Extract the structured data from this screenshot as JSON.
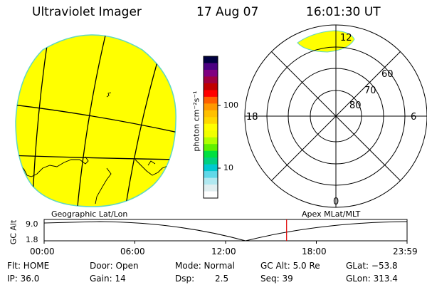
{
  "header": {
    "title": "Ultraviolet Imager",
    "date": "17 Aug 07",
    "time": "16:01:30 UT"
  },
  "colorbar": {
    "unit_label": "photon cm⁻²s⁻¹",
    "ticks": [
      "100",
      "10"
    ],
    "colors": [
      "#000040",
      "#4b0082",
      "#800080",
      "#a00040",
      "#c00000",
      "#ff0000",
      "#ff6000",
      "#ff9900",
      "#ffc000",
      "#ffd800",
      "#ffff00",
      "#f0ff00",
      "#b0ff00",
      "#60f000",
      "#00e040",
      "#00d080",
      "#00c8d0",
      "#60d8e8",
      "#b0e8f0",
      "#e0eef0",
      "#ffffff"
    ]
  },
  "polar_plot": {
    "mlt_labels": {
      "top": "12",
      "left": "18",
      "right": "6",
      "bottom": "0"
    },
    "lat_labels": [
      "60",
      "70",
      "80"
    ]
  },
  "strip": {
    "left_label": "Geographic Lat/Lon",
    "right_label": "Apex MLat/MLT",
    "y_axis_label": "GC Alt",
    "y_ticks": [
      "9.0",
      "1.8"
    ],
    "x_ticks": [
      "00:00",
      "06:00",
      "12:00",
      "18:00",
      "23:59"
    ],
    "current_time_fraction": 0.668
  },
  "status": {
    "flt": "Flt: HOME",
    "ip": "IP: 36.0",
    "door": "Door: Open",
    "gain": "Gain: 14",
    "mode": "Mode: Normal",
    "dsp_label": "Dsp:",
    "dsp_value": "2.5",
    "gc_alt": "GC Alt: 5.0 Re",
    "seq": "Seq: 39",
    "glat": "GLat: −53.8",
    "glon": "GLon: 313.4"
  }
}
